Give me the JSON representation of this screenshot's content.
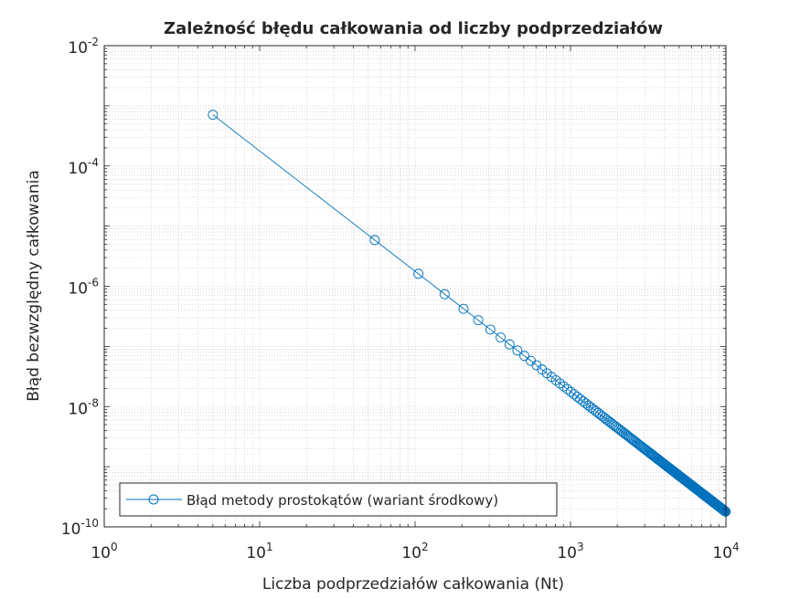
{
  "chart_data": {
    "type": "line",
    "title": "Zależność błędu całkowania od liczby podprzedziałów",
    "xlabel": "Liczba podprzedziałów całkowania (Nt)",
    "ylabel": "Błąd bezwzględny całkowania",
    "xscale": "log",
    "yscale": "log",
    "xlim": [
      1,
      10000
    ],
    "ylim": [
      1e-10,
      0.01
    ],
    "grid": "on (major and minor)",
    "legend_position": "bottom-left",
    "x_ticks": [
      {
        "base": "10",
        "exp": "0"
      },
      {
        "base": "10",
        "exp": "1"
      },
      {
        "base": "10",
        "exp": "2"
      },
      {
        "base": "10",
        "exp": "3"
      },
      {
        "base": "10",
        "exp": "4"
      }
    ],
    "y_ticks": [
      {
        "base": "10",
        "exp": "-10"
      },
      {
        "base": "10",
        "exp": "-8"
      },
      {
        "base": "10",
        "exp": "-6"
      },
      {
        "base": "10",
        "exp": "-4"
      },
      {
        "base": "10",
        "exp": "-2"
      }
    ],
    "series": [
      {
        "name": "Błąd metody prostokątów (wariant środkowy)",
        "color": "#0072BD",
        "marker": "circle",
        "x_start": 5,
        "x_step": 50,
        "x_end": 9955,
        "y_at_x_start": 0.00071,
        "decay_exponent": -2,
        "model": "y = y_at_x_start * (x / x_start)^decay_exponent"
      }
    ]
  }
}
